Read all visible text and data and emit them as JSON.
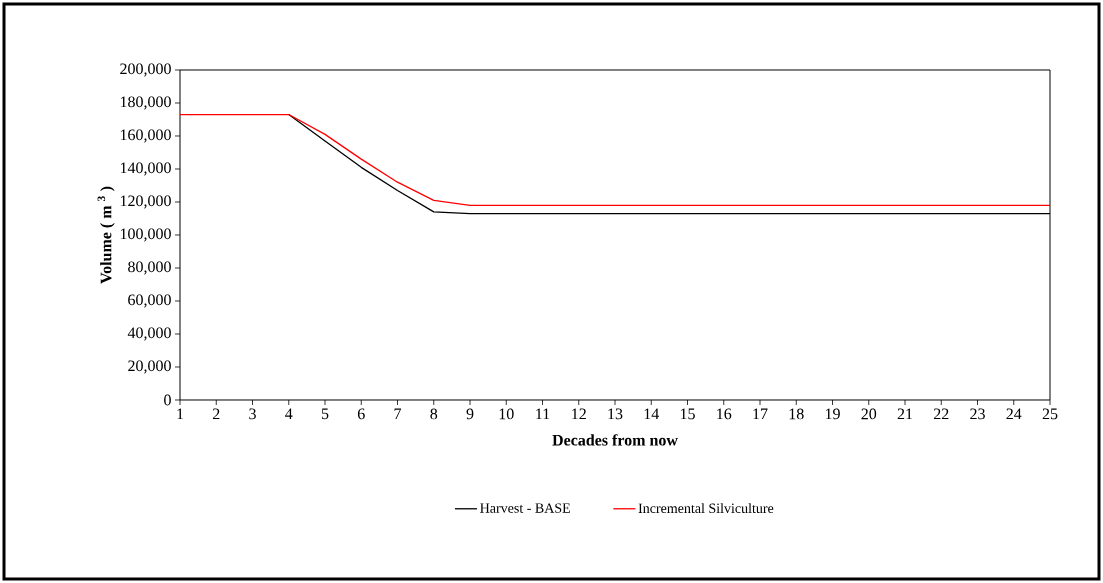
{
  "chart_data": {
    "type": "line",
    "xlabel": "Decades from now",
    "ylabel": "Volume ( m $^{3}$ )",
    "x": [
      1,
      2,
      3,
      4,
      5,
      6,
      7,
      8,
      9,
      10,
      11,
      12,
      13,
      14,
      15,
      16,
      17,
      18,
      19,
      20,
      21,
      22,
      23,
      24,
      25
    ],
    "series": [
      {
        "name": "Harvest - BASE",
        "color": "#000000",
        "values": [
          null,
          null,
          null,
          173000,
          157000,
          141000,
          127000,
          114000,
          113000,
          113000,
          113000,
          113000,
          113000,
          113000,
          113000,
          113000,
          113000,
          113000,
          113000,
          113000,
          113000,
          113000,
          113000,
          113000,
          113000
        ]
      },
      {
        "name": "Incremental Silviculture",
        "color": "#ff0000",
        "values": [
          173000,
          173000,
          173000,
          173000,
          161000,
          146000,
          132000,
          121000,
          118000,
          118000,
          118000,
          118000,
          118000,
          118000,
          118000,
          118000,
          118000,
          118000,
          118000,
          118000,
          118000,
          118000,
          118000,
          118000,
          118000
        ]
      }
    ],
    "xlim": [
      1,
      25
    ],
    "xticks": [
      1,
      2,
      3,
      4,
      5,
      6,
      7,
      8,
      9,
      10,
      11,
      12,
      13,
      14,
      15,
      16,
      17,
      18,
      19,
      20,
      21,
      22,
      23,
      24,
      25
    ],
    "ylim": [
      0,
      200000
    ],
    "yticks": [
      0,
      {
        "value": 20000,
        "label": "20,000"
      },
      {
        "value": 40000,
        "label": "40,000"
      },
      {
        "value": 60000,
        "label": "60,000"
      },
      {
        "value": 80000,
        "label": "80,000"
      },
      {
        "value": 100000,
        "label": "100,000"
      },
      {
        "value": 120000,
        "label": "120,000"
      },
      {
        "value": 140000,
        "label": "140,000"
      },
      {
        "value": 160000,
        "label": "160,000"
      },
      {
        "value": 180000,
        "label": "180,000"
      },
      {
        "value": 200000,
        "label": "200,000"
      }
    ],
    "grid": false,
    "legend": "bottom",
    "marker": "none",
    "line_style": "solid"
  }
}
